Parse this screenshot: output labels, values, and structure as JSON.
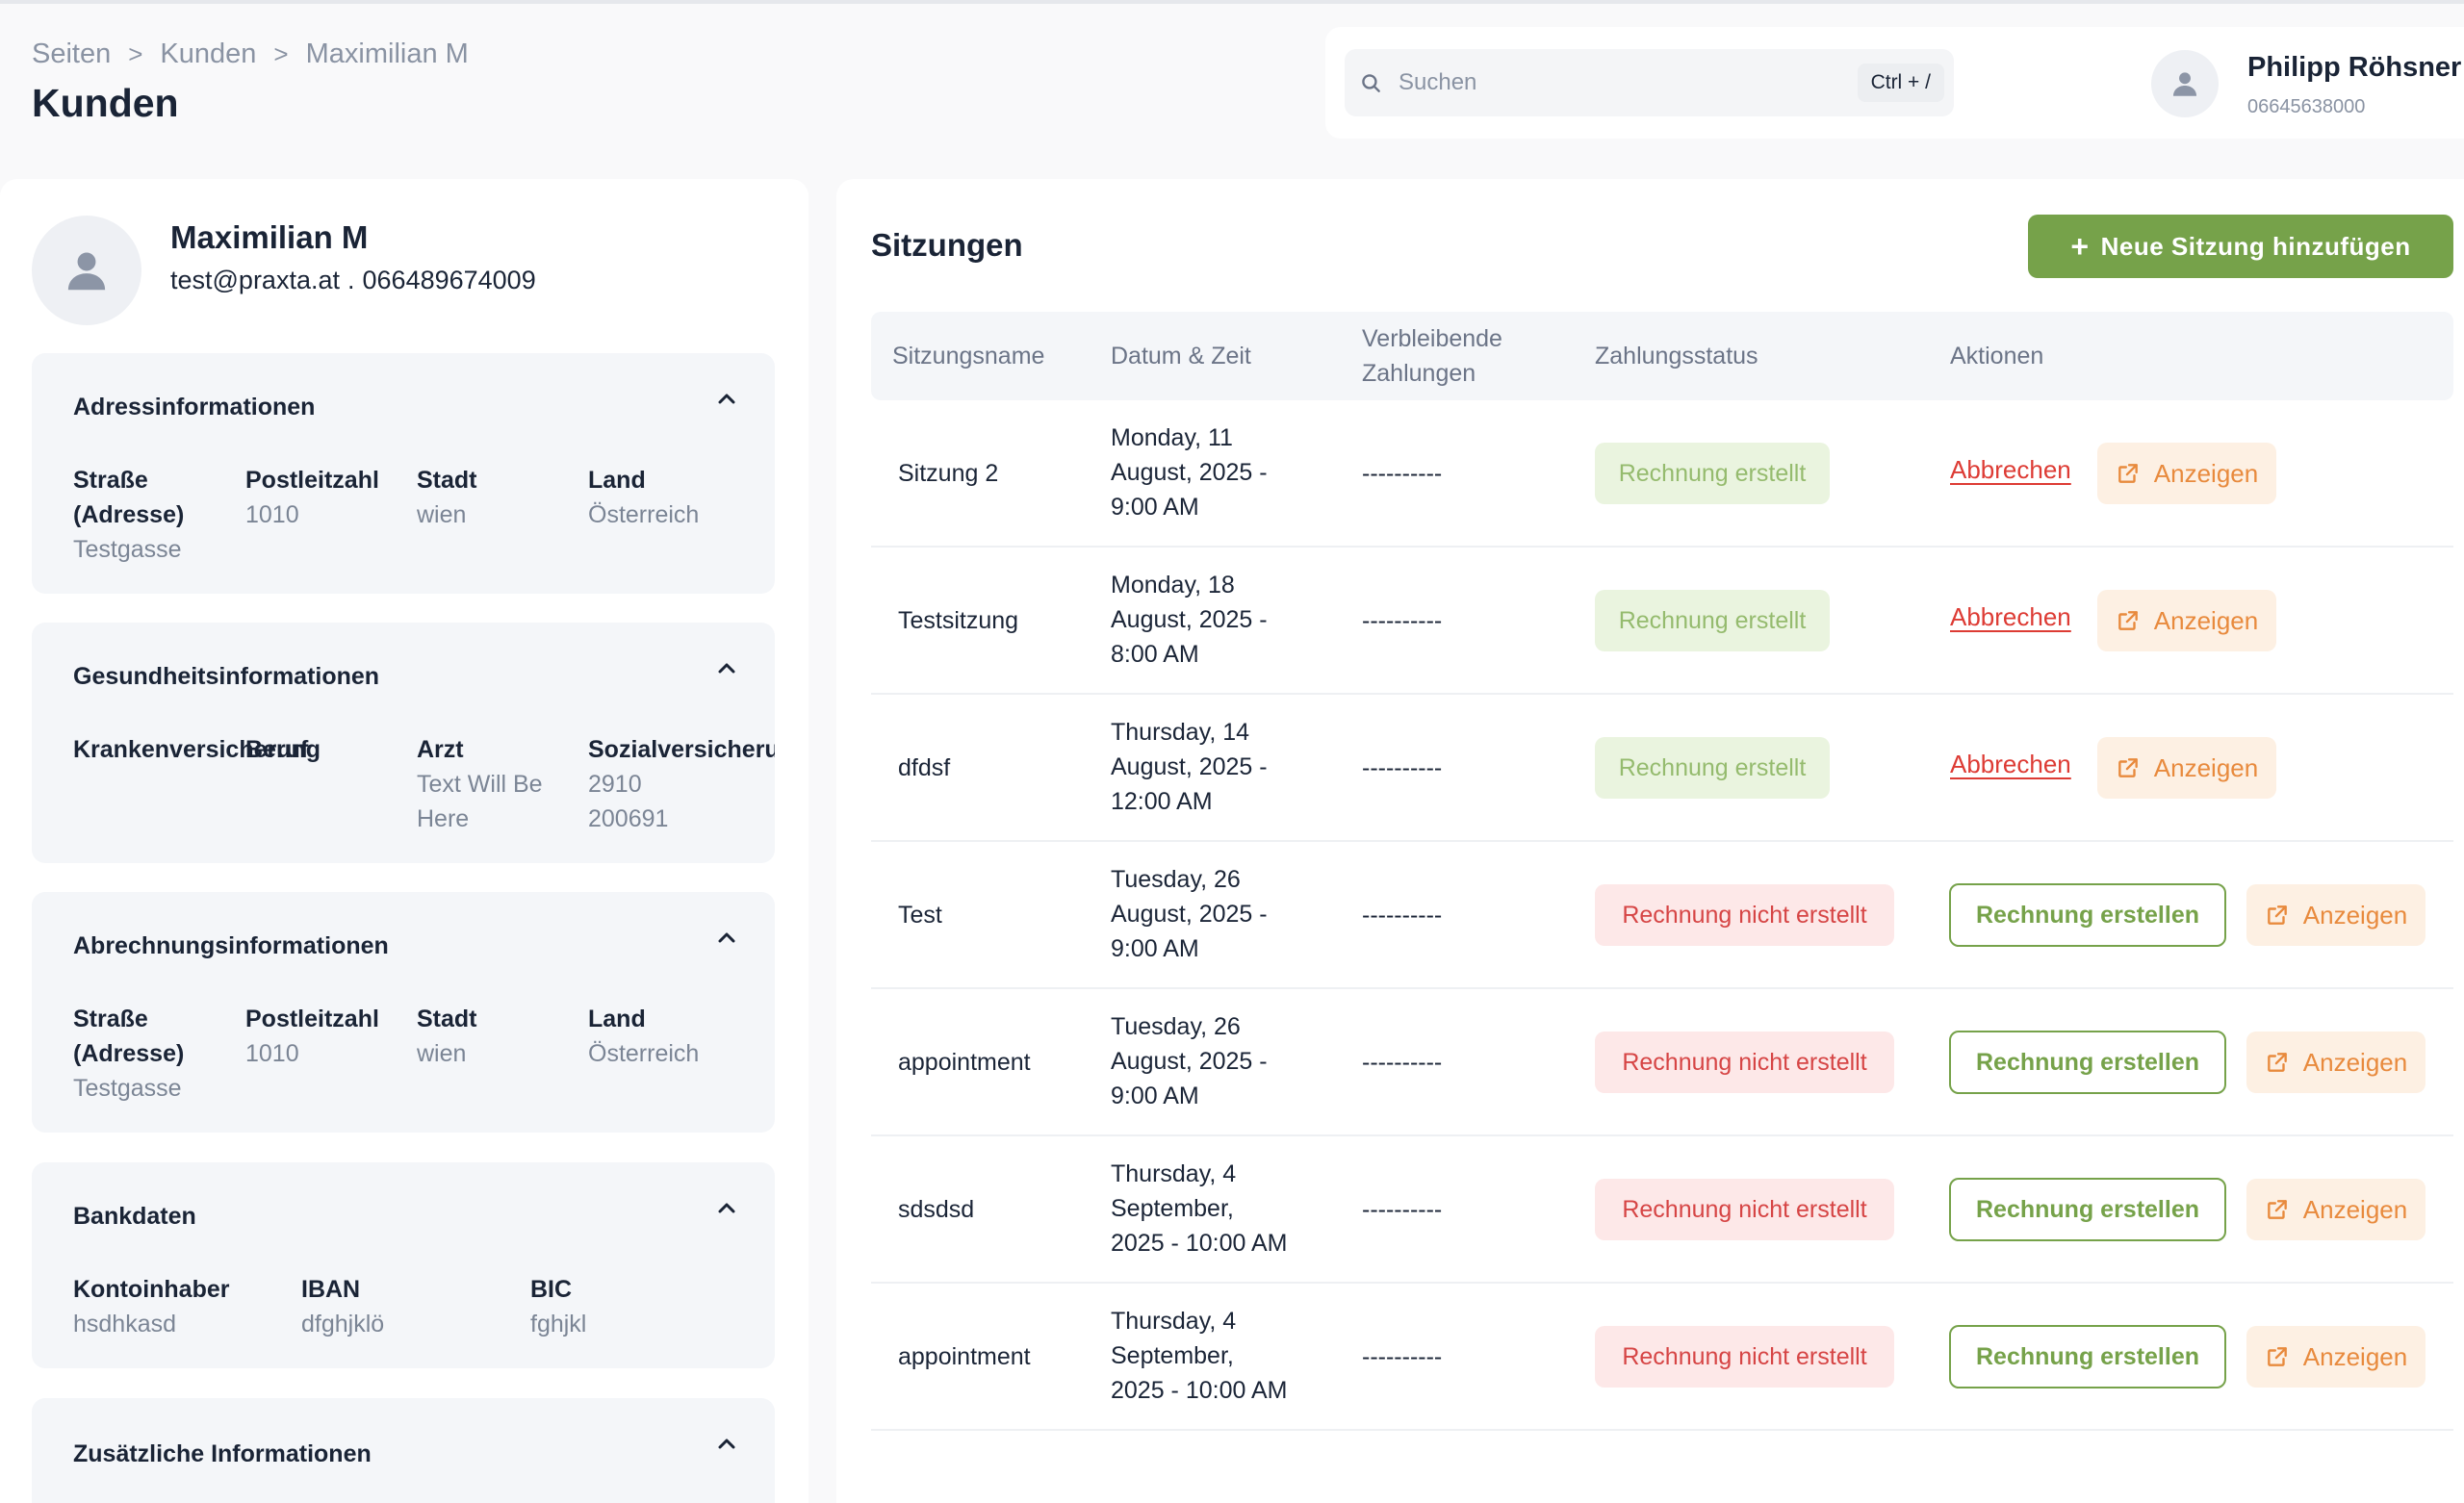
{
  "breadcrumb": [
    "Seiten",
    "Kunden",
    "Maximilian M"
  ],
  "breadcrumb_separator": ">",
  "page_title": "Kunden",
  "search": {
    "placeholder": "Suchen",
    "shortcut": "Ctrl + /"
  },
  "user": {
    "name": "Philipp Röhsner",
    "phone": "06645638000"
  },
  "client": {
    "name": "Maximilian M",
    "email": "test@praxta.at",
    "dot": ".",
    "phone": "066489674009"
  },
  "cards": {
    "address": {
      "title": "Adressinformationen",
      "street_label": "Straße (Adresse)",
      "street": "Testgasse",
      "zip_label": "Postleitzahl",
      "zip": "1010",
      "city_label": "Stadt",
      "city": "wien",
      "country_label": "Land",
      "country": "Österreich"
    },
    "health": {
      "title": "Gesundheitsinformationen",
      "insurance_label": "Krankenversicherung",
      "insurance": "",
      "job_label": "Beruf",
      "job": "",
      "doctor_label": "Arzt",
      "doctor": "Text Will Be Here",
      "social_label": "Sozialversicherung",
      "social": "2910 200691"
    },
    "billing": {
      "title": "Abrechnungsinformationen",
      "street_label": "Straße (Adresse)",
      "street": "Testgasse",
      "zip_label": "Postleitzahl",
      "zip": "1010",
      "city_label": "Stadt",
      "city": "wien",
      "country_label": "Land",
      "country": "Österreich"
    },
    "bank": {
      "title": "Bankdaten",
      "holder_label": "Kontoinhaber",
      "holder": "hsdhkasd",
      "iban_label": "IBAN",
      "iban": "dfghjklö",
      "bic_label": "BIC",
      "bic": "fghjkl"
    },
    "extra": {
      "title": "Zusätzliche Informationen"
    }
  },
  "sessions": {
    "title": "Sitzungen",
    "add_button": "Neue Sitzung hinzufügen",
    "columns": [
      "Sitzungsname",
      "Datum & Zeit",
      "Verbleibende Zahlungen",
      "Zahlungsstatus",
      "Aktionen"
    ],
    "cancel_label": "Abbrechen",
    "create_label": "Rechnung erstellen",
    "view_label": "Anzeigen",
    "rows": [
      {
        "name": "Sitzung 2",
        "date_1": "Monday, 11",
        "date_2": "August, 2025 -",
        "date_3": "9:00 AM",
        "remaining": "----------",
        "status": "Rechnung erstellt"
      },
      {
        "name": "Testsitzung",
        "date_1": "Monday, 18",
        "date_2": "August, 2025 -",
        "date_3": "8:00 AM",
        "remaining": "----------",
        "status": "Rechnung erstellt"
      },
      {
        "name": "dfdsf",
        "date_1": "Thursday, 14",
        "date_2": "August, 2025 -",
        "date_3": "12:00 AM",
        "remaining": "----------",
        "status": "Rechnung erstellt"
      },
      {
        "name": "Test",
        "date_1": "Tuesday, 26",
        "date_2": "August, 2025 -",
        "date_3": "9:00 AM",
        "remaining": "----------",
        "status": "Rechnung nicht erstellt"
      },
      {
        "name": "appointment",
        "date_1": "Tuesday, 26",
        "date_2": "August, 2025 -",
        "date_3": "9:00 AM",
        "remaining": "----------",
        "status": "Rechnung nicht erstellt"
      },
      {
        "name": "sdsdsd",
        "date_1": "Thursday, 4",
        "date_2": "September,",
        "date_3": "2025 - 10:00 AM",
        "remaining": "----------",
        "status": "Rechnung nicht erstellt"
      },
      {
        "name": "appointment",
        "date_1": "Thursday, 4",
        "date_2": "September,",
        "date_3": "2025 - 10:00 AM",
        "remaining": "----------",
        "status": "Rechnung nicht erstellt"
      }
    ]
  },
  "colors": {
    "accent_green": "#76a24a",
    "cancel_red": "#dd3b34",
    "view_orange": "#e88a3d"
  }
}
